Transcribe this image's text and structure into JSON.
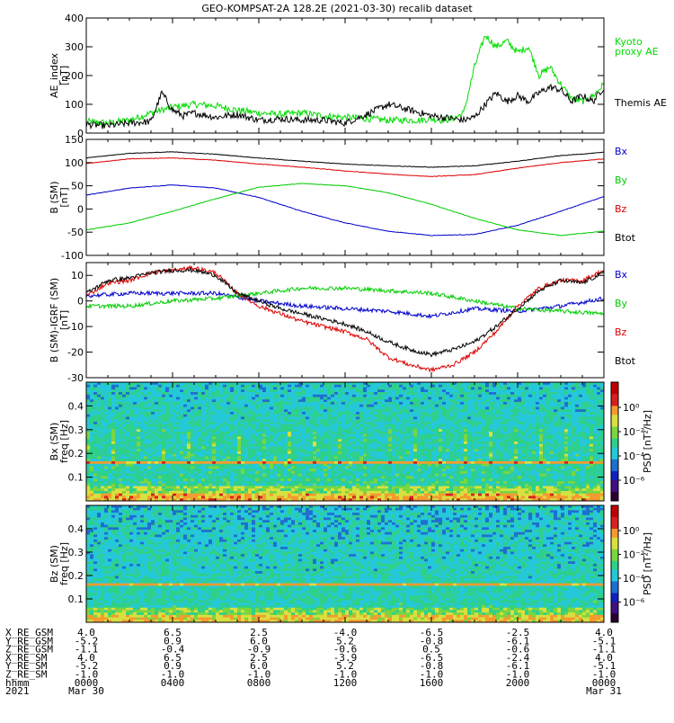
{
  "title": "GEO-KOMPSAT-2A 128.2E (2021-03-30) recalib dataset",
  "chart_data": [
    {
      "type": "line",
      "panel": "ae",
      "ylabel": [
        "AE_index",
        "[nT]"
      ],
      "ylim": [
        0,
        400
      ],
      "yticks": [
        0,
        100,
        200,
        300,
        400
      ],
      "x_hours": [
        0,
        24
      ],
      "series": [
        {
          "name": "Kyoto proxy AE",
          "label_lines": [
            "Kyoto",
            "proxy AE"
          ],
          "color": "#00dd00",
          "x": [
            0,
            1,
            2,
            3,
            4,
            5,
            6,
            7,
            8,
            9,
            10,
            11,
            12,
            13,
            14,
            15,
            15.5,
            16,
            16.5,
            17,
            17.5,
            18,
            18.5,
            19,
            19.5,
            20,
            20.5,
            21,
            21.5,
            22,
            22.5,
            23,
            23.5,
            24
          ],
          "values": [
            40,
            35,
            45,
            70,
            90,
            100,
            95,
            80,
            70,
            65,
            70,
            60,
            55,
            50,
            45,
            45,
            45,
            50,
            45,
            50,
            70,
            230,
            340,
            300,
            320,
            280,
            300,
            200,
            230,
            170,
            120,
            110,
            130,
            170
          ]
        },
        {
          "name": "Themis AE",
          "label_lines": [
            "Themis AE"
          ],
          "color": "#000000",
          "x": [
            0,
            1,
            2,
            3,
            3.5,
            4,
            4.5,
            5,
            6,
            7,
            8,
            9,
            10,
            11,
            12,
            13,
            14,
            15,
            16,
            17,
            17.5,
            18,
            18.5,
            19,
            19.5,
            20,
            20.5,
            21,
            21.5,
            22,
            22.5,
            23,
            23.5,
            24
          ],
          "values": [
            30,
            25,
            35,
            40,
            140,
            80,
            60,
            70,
            55,
            65,
            45,
            50,
            45,
            45,
            35,
            65,
            100,
            80,
            60,
            50,
            45,
            55,
            100,
            140,
            110,
            130,
            110,
            140,
            160,
            150,
            110,
            130,
            110,
            160
          ]
        }
      ]
    },
    {
      "type": "line",
      "panel": "b_sm",
      "ylabel": [
        "B (SM)",
        "[nT]"
      ],
      "ylim": [
        -100,
        150
      ],
      "yticks": [
        -100,
        -50,
        0,
        50,
        100,
        150
      ],
      "series": [
        {
          "name": "Bx",
          "color": "#0000cc",
          "x": [
            0,
            2,
            4,
            6,
            8,
            10,
            12,
            14,
            16,
            18,
            20,
            22,
            24
          ],
          "values": [
            30,
            45,
            52,
            45,
            25,
            -5,
            -30,
            -48,
            -57,
            -55,
            -35,
            -5,
            27
          ]
        },
        {
          "name": "By",
          "color": "#00cc00",
          "x": [
            0,
            2,
            4,
            6,
            8,
            10,
            12,
            14,
            16,
            18,
            20,
            22,
            24
          ],
          "values": [
            -45,
            -30,
            -5,
            22,
            47,
            55,
            50,
            35,
            10,
            -20,
            -45,
            -57,
            -48
          ]
        },
        {
          "name": "Bz",
          "color": "#dd0000",
          "x": [
            0,
            2,
            4,
            6,
            8,
            10,
            12,
            14,
            16,
            18,
            20,
            22,
            24
          ],
          "values": [
            98,
            108,
            110,
            105,
            97,
            90,
            82,
            75,
            70,
            74,
            88,
            100,
            108
          ]
        },
        {
          "name": "Btot",
          "color": "#000000",
          "x": [
            0,
            2,
            4,
            6,
            8,
            10,
            12,
            14,
            16,
            18,
            20,
            22,
            24
          ],
          "values": [
            110,
            120,
            123,
            118,
            110,
            103,
            97,
            93,
            90,
            93,
            103,
            115,
            122
          ]
        }
      ]
    },
    {
      "type": "line",
      "panel": "b_minus_igrf",
      "ylabel": [
        "B (SM)-IGRF (SM)",
        "[nT]"
      ],
      "ylim": [
        -30,
        15
      ],
      "yticks": [
        -30,
        -20,
        -10,
        0,
        10
      ],
      "series": [
        {
          "name": "Bx",
          "color": "#0000cc",
          "x": [
            0,
            2,
            4,
            6,
            8,
            10,
            12,
            14,
            16,
            18,
            20,
            22,
            24
          ],
          "values": [
            2,
            3,
            3,
            3,
            0,
            -2,
            -3,
            -4,
            -6,
            -3,
            -4,
            -2,
            1
          ]
        },
        {
          "name": "By",
          "color": "#00cc00",
          "x": [
            0,
            2,
            4,
            6,
            8,
            10,
            12,
            14,
            16,
            18,
            20,
            22,
            24
          ],
          "values": [
            -2,
            -2,
            0,
            1,
            3,
            5,
            5,
            4,
            3,
            0,
            -3,
            -4,
            -5
          ]
        },
        {
          "name": "Bz",
          "color": "#dd0000",
          "x": [
            0,
            1,
            2,
            3,
            4,
            5,
            6,
            7,
            8,
            9,
            10,
            11,
            12,
            13,
            14,
            15,
            16,
            17,
            18,
            19,
            20,
            21,
            22,
            23,
            24
          ],
          "values": [
            2,
            7,
            8,
            11,
            12,
            13,
            11,
            3,
            -2,
            -5,
            -8,
            -10,
            -12,
            -15,
            -22,
            -25,
            -27,
            -25,
            -20,
            -12,
            -2,
            5,
            8,
            8,
            12
          ]
        },
        {
          "name": "Btot",
          "color": "#000000",
          "x": [
            0,
            1,
            2,
            3,
            4,
            5,
            6,
            7,
            8,
            9,
            10,
            11,
            12,
            13,
            14,
            15,
            16,
            17,
            18,
            19,
            20,
            21,
            22,
            23,
            24
          ],
          "values": [
            3,
            8,
            9,
            11,
            12,
            12,
            10,
            3,
            0,
            -3,
            -5,
            -7,
            -9,
            -12,
            -16,
            -19,
            -21,
            -19,
            -16,
            -10,
            -3,
            4,
            8,
            7,
            11
          ]
        }
      ]
    },
    {
      "type": "heatmap",
      "panel": "spec_bx",
      "ylabel": [
        "Bx (SM)",
        "freq [Hz]"
      ],
      "ylim": [
        0,
        0.5
      ],
      "yticks": [
        0.1,
        0.2,
        0.3,
        0.4
      ],
      "colorbar": {
        "label": "PSD [nT²/Hz]",
        "ticks": [
          "10⁰",
          "10⁻²",
          "10⁻⁴",
          "10⁻⁶"
        ]
      }
    },
    {
      "type": "heatmap",
      "panel": "spec_bz",
      "ylabel": [
        "Bz (SM)",
        "freq [Hz]"
      ],
      "ylim": [
        0,
        0.5
      ],
      "yticks": [
        0.1,
        0.2,
        0.3,
        0.4
      ],
      "colorbar": {
        "label": "PSD [nT²/Hz]",
        "ticks": [
          "10⁰",
          "10⁻²",
          "10⁻⁴",
          "10⁻⁶"
        ]
      }
    }
  ],
  "ephemeris": {
    "rows": [
      {
        "label": "X_RE_GSM",
        "values": [
          "4.0",
          "6.5",
          "2.5",
          "-4.0",
          "-6.5",
          "-2.5",
          "4.0"
        ]
      },
      {
        "label": "Y_RE_GSM",
        "values": [
          "-5.2",
          "0.9",
          "6.0",
          "5.2",
          "-0.8",
          "-6.1",
          "-5.1"
        ]
      },
      {
        "label": "Z_RE_GSM",
        "values": [
          "-1.1",
          "-0.4",
          "-0.9",
          "-0.6",
          "0.5",
          "-0.6",
          "-1.1"
        ]
      },
      {
        "label": "X_RE_SM",
        "values": [
          "4.0",
          "6.5",
          "2.5",
          "-3.9",
          "-6.5",
          "-2.4",
          "4.0"
        ]
      },
      {
        "label": "Y_RE_SM",
        "values": [
          "-5.2",
          "0.9",
          "6.0",
          "5.2",
          "-0.8",
          "-6.1",
          "-5.1"
        ]
      },
      {
        "label": "Z_RE_SM",
        "values": [
          "-1.0",
          "-1.0",
          "-1.0",
          "-1.0",
          "-1.0",
          "-1.0",
          "-1.0"
        ]
      },
      {
        "label": "hhmm",
        "values": [
          "0000",
          "0400",
          "0800",
          "1200",
          "1600",
          "2000",
          "0000"
        ]
      },
      {
        "label": "2021",
        "values": [
          "Mar 30",
          "",
          "",
          "",
          "",
          "",
          "Mar 31"
        ]
      }
    ]
  }
}
